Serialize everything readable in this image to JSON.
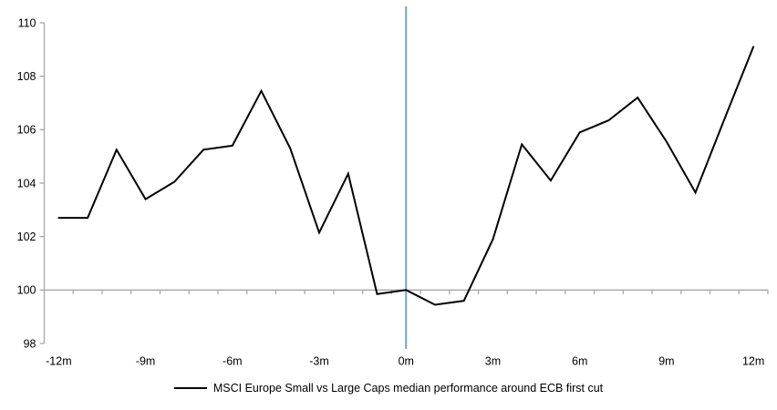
{
  "chart_data": {
    "type": "line",
    "title": "",
    "xlabel": "",
    "ylabel": "",
    "x": [
      -12,
      -11,
      -10,
      -9,
      -8,
      -7,
      -6,
      -5,
      -4,
      -3,
      -2,
      -1,
      0,
      1,
      2,
      3,
      4,
      5,
      6,
      7,
      8,
      9,
      10,
      11,
      12
    ],
    "x_tick_positions": [
      -12,
      -9,
      -6,
      -3,
      0,
      3,
      6,
      9,
      12
    ],
    "x_tick_labels": [
      "-12m",
      "-9m",
      "-6m",
      "-3m",
      "0m",
      "3m",
      "6m",
      "9m",
      "12m"
    ],
    "series": [
      {
        "name": "MSCI Europe Small vs Large Caps median performance around ECB first cut",
        "color": "#000000",
        "values": [
          102.7,
          102.7,
          105.25,
          103.4,
          104.05,
          105.25,
          105.4,
          107.45,
          105.3,
          102.15,
          104.35,
          99.85,
          100.0,
          99.45,
          99.6,
          101.9,
          105.45,
          104.1,
          105.9,
          106.35,
          107.2,
          105.55,
          103.65,
          106.4,
          109.1
        ]
      }
    ],
    "ylim": [
      98,
      110
    ],
    "y_ticks": [
      98,
      100,
      102,
      104,
      106,
      108,
      110
    ],
    "baseline": 100,
    "event_line": {
      "x": 0,
      "color": "#74A3CE"
    },
    "axis_color": "#A6A6A6",
    "grid": "baseline-only",
    "legend_position": "bottom"
  },
  "legend": {
    "label": "MSCI Europe Small vs Large Caps median performance around ECB first cut"
  }
}
